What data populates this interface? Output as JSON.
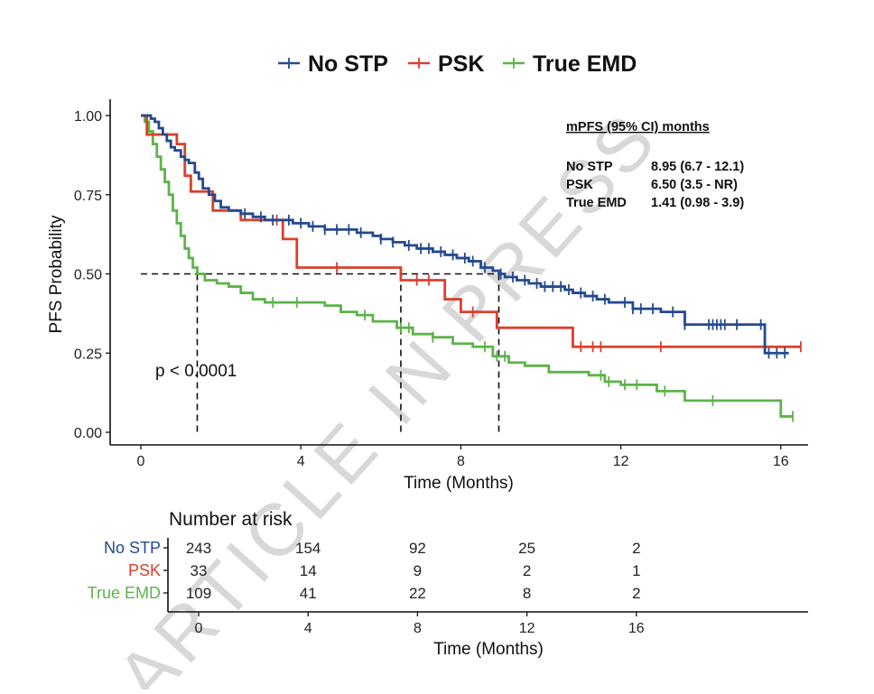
{
  "chart_data": {
    "type": "line",
    "subtype": "kaplan-meier",
    "title": "",
    "xlabel": "Time (Months)",
    "ylabel": "PFS Probability",
    "xlim": [
      -0.9,
      16.8
    ],
    "ylim": [
      -0.04,
      1.05
    ],
    "xticks": [
      0,
      4,
      8,
      12,
      16
    ],
    "xtick_labels": [
      "0",
      "4",
      "8",
      "12",
      "16"
    ],
    "yticks": [
      0,
      0.25,
      0.5,
      0.75,
      1.0
    ],
    "ytick_labels": [
      "0.00",
      "0.25",
      "0.50",
      "0.75",
      "1.00"
    ],
    "grid": false,
    "legend": {
      "placement": "top-center",
      "entries": [
        {
          "label": "No STP",
          "color": "#25498f"
        },
        {
          "label": "PSK",
          "color": "#d9402e"
        },
        {
          "label": "True EMD",
          "color": "#5db34a"
        }
      ]
    },
    "series": [
      {
        "name": "No STP",
        "color": "#25498f",
        "steps": [
          [
            0,
            1.0
          ],
          [
            0.15,
            1.0
          ],
          [
            0.25,
            0.99
          ],
          [
            0.35,
            0.98
          ],
          [
            0.45,
            0.96
          ],
          [
            0.55,
            0.94
          ],
          [
            0.65,
            0.92
          ],
          [
            0.75,
            0.9
          ],
          [
            0.85,
            0.89
          ],
          [
            1.0,
            0.87
          ],
          [
            1.1,
            0.86
          ],
          [
            1.2,
            0.85
          ],
          [
            1.35,
            0.82
          ],
          [
            1.45,
            0.8
          ],
          [
            1.55,
            0.77
          ],
          [
            1.7,
            0.75
          ],
          [
            1.85,
            0.73
          ],
          [
            2.0,
            0.71
          ],
          [
            2.2,
            0.7
          ],
          [
            2.5,
            0.69
          ],
          [
            2.8,
            0.68
          ],
          [
            3.1,
            0.67
          ],
          [
            3.4,
            0.67
          ],
          [
            3.8,
            0.66
          ],
          [
            4.2,
            0.65
          ],
          [
            4.6,
            0.64
          ],
          [
            5.0,
            0.64
          ],
          [
            5.4,
            0.63
          ],
          [
            5.8,
            0.62
          ],
          [
            6.0,
            0.61
          ],
          [
            6.3,
            0.6
          ],
          [
            6.6,
            0.59
          ],
          [
            6.9,
            0.58
          ],
          [
            7.3,
            0.57
          ],
          [
            7.6,
            0.56
          ],
          [
            7.9,
            0.55
          ],
          [
            8.2,
            0.54
          ],
          [
            8.5,
            0.52
          ],
          [
            8.8,
            0.51
          ],
          [
            8.95,
            0.5
          ],
          [
            9.1,
            0.49
          ],
          [
            9.4,
            0.48
          ],
          [
            9.7,
            0.47
          ],
          [
            10.0,
            0.46
          ],
          [
            10.3,
            0.46
          ],
          [
            10.6,
            0.45
          ],
          [
            10.8,
            0.44
          ],
          [
            11.1,
            0.43
          ],
          [
            11.4,
            0.42
          ],
          [
            11.7,
            0.41
          ],
          [
            12.3,
            0.39
          ],
          [
            13.0,
            0.38
          ],
          [
            13.6,
            0.34
          ],
          [
            14.8,
            0.34
          ],
          [
            15.6,
            0.25
          ],
          [
            16.2,
            0.25
          ]
        ],
        "censor_times": [
          2.6,
          3.0,
          3.3,
          3.7,
          4.0,
          4.3,
          4.6,
          4.9,
          5.2,
          5.5,
          6.0,
          6.3,
          6.7,
          7.0,
          7.2,
          7.5,
          7.8,
          8.1,
          8.3,
          8.6,
          9.0,
          9.3,
          9.6,
          9.9,
          10.1,
          10.3,
          10.5,
          10.7,
          11.0,
          11.3,
          11.6,
          12.1,
          12.3,
          12.5,
          12.8,
          13.3,
          13.6,
          14.2,
          14.3,
          14.4,
          14.5,
          14.6,
          14.9,
          15.5,
          15.7,
          15.9,
          16.1
        ]
      },
      {
        "name": "PSK",
        "color": "#d9402e",
        "steps": [
          [
            0,
            1.0
          ],
          [
            0.15,
            0.94
          ],
          [
            0.9,
            0.91
          ],
          [
            1.1,
            0.81
          ],
          [
            1.25,
            0.76
          ],
          [
            1.8,
            0.7
          ],
          [
            2.5,
            0.67
          ],
          [
            3.55,
            0.61
          ],
          [
            3.9,
            0.52
          ],
          [
            6.5,
            0.48
          ],
          [
            7.6,
            0.42
          ],
          [
            8.0,
            0.38
          ],
          [
            8.9,
            0.33
          ],
          [
            10.8,
            0.27
          ],
          [
            16.5,
            0.27
          ]
        ],
        "censor_times": [
          3.4,
          4.9,
          6.9,
          7.2,
          8.3,
          11.0,
          11.3,
          11.5,
          13.0,
          16.5
        ]
      },
      {
        "name": "True EMD",
        "color": "#5db34a",
        "steps": [
          [
            0,
            1.0
          ],
          [
            0.1,
            0.98
          ],
          [
            0.2,
            0.95
          ],
          [
            0.3,
            0.91
          ],
          [
            0.4,
            0.87
          ],
          [
            0.5,
            0.83
          ],
          [
            0.6,
            0.79
          ],
          [
            0.7,
            0.75
          ],
          [
            0.8,
            0.7
          ],
          [
            0.9,
            0.66
          ],
          [
            1.0,
            0.62
          ],
          [
            1.1,
            0.58
          ],
          [
            1.2,
            0.55
          ],
          [
            1.3,
            0.52
          ],
          [
            1.41,
            0.5
          ],
          [
            1.6,
            0.48
          ],
          [
            1.9,
            0.47
          ],
          [
            2.2,
            0.46
          ],
          [
            2.5,
            0.44
          ],
          [
            2.8,
            0.42
          ],
          [
            3.1,
            0.41
          ],
          [
            3.4,
            0.41
          ],
          [
            4.2,
            0.41
          ],
          [
            4.6,
            0.4
          ],
          [
            5.0,
            0.38
          ],
          [
            5.4,
            0.37
          ],
          [
            5.8,
            0.35
          ],
          [
            6.4,
            0.33
          ],
          [
            6.8,
            0.31
          ],
          [
            7.3,
            0.3
          ],
          [
            7.8,
            0.28
          ],
          [
            8.3,
            0.27
          ],
          [
            8.8,
            0.24
          ],
          [
            9.2,
            0.22
          ],
          [
            9.6,
            0.21
          ],
          [
            10.2,
            0.19
          ],
          [
            11.2,
            0.18
          ],
          [
            11.6,
            0.16
          ],
          [
            12.0,
            0.15
          ],
          [
            12.9,
            0.13
          ],
          [
            13.6,
            0.1
          ],
          [
            16.0,
            0.05
          ],
          [
            16.3,
            0.05
          ]
        ],
        "censor_times": [
          3.3,
          3.9,
          5.6,
          6.5,
          6.7,
          7.3,
          8.6,
          8.9,
          9.1,
          11.5,
          11.7,
          12.1,
          12.4,
          13.1,
          14.3,
          16.3
        ]
      }
    ],
    "median_lines": {
      "y": 0.5,
      "x": [
        1.41,
        6.5,
        8.95
      ]
    },
    "annotations": {
      "p_value": "p < 0.0001",
      "mpfs_title": "mPFS (95% CI) months",
      "mpfs_rows": [
        {
          "group": "No STP",
          "value": "8.95 (6.7 - 12.1)"
        },
        {
          "group": "PSK",
          "value": "6.50 (3.5 - NR)"
        },
        {
          "group": "True EMD",
          "value": "1.41 (0.98 - 3.9)"
        }
      ]
    },
    "risk_table": {
      "title": "Number at risk",
      "xlabel": "Time (Months)",
      "times": [
        0,
        4,
        8,
        12,
        16
      ],
      "time_labels": [
        "0",
        "4",
        "8",
        "12",
        "16"
      ],
      "rows": [
        {
          "group": "No STP",
          "color": "#25498f",
          "values": [
            243,
            154,
            92,
            25,
            2
          ]
        },
        {
          "group": "PSK",
          "color": "#d9402e",
          "values": [
            33,
            14,
            9,
            2,
            1
          ]
        },
        {
          "group": "True EMD",
          "color": "#5db34a",
          "values": [
            109,
            41,
            22,
            8,
            2
          ]
        }
      ]
    }
  },
  "watermark": "ARTICLE IN PRESS"
}
